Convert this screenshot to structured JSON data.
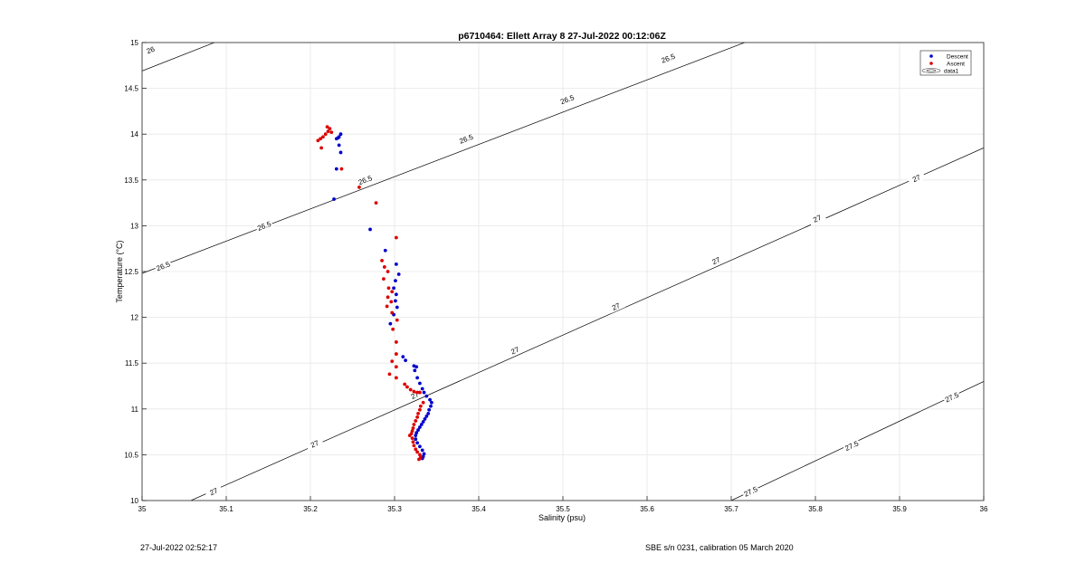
{
  "footer": {
    "timestamp": "27-Jul-2022 02:52:17",
    "calibration": "SBE s/n 0231, calibration 05 March 2020"
  },
  "colors": {
    "descent": "#0000cc",
    "ascent": "#dd0000",
    "contour": "#000000",
    "grid": "#e6e6e6"
  },
  "chart_data": {
    "type": "scatter",
    "title": "p6710464: Ellett Array 8 27-Jul-2022 00:12:06Z",
    "xlabel": "Salinity (psu)",
    "ylabel": "Temperature (°C)",
    "xlim": [
      35,
      36
    ],
    "ylim": [
      10,
      15
    ],
    "xticks": [
      "35",
      "35.1",
      "35.2",
      "35.3",
      "35.4",
      "35.5",
      "35.6",
      "35.7",
      "35.8",
      "35.9",
      "36"
    ],
    "yticks": [
      "10",
      "10.5",
      "11",
      "11.5",
      "12",
      "12.5",
      "13",
      "13.5",
      "14",
      "14.5",
      "15"
    ],
    "grid": true,
    "legend": {
      "placement": "top-right",
      "entries": [
        "Descent",
        "Ascent",
        "data1"
      ]
    },
    "series": [
      {
        "name": "Descent",
        "points": [
          [
            35.236,
            14.0
          ],
          [
            35.234,
            13.97
          ],
          [
            35.233,
            13.96
          ],
          [
            35.231,
            13.95
          ],
          [
            35.234,
            13.88
          ],
          [
            35.236,
            13.8
          ],
          [
            35.231,
            13.62
          ],
          [
            35.228,
            13.29
          ],
          [
            35.271,
            12.96
          ],
          [
            35.289,
            12.73
          ],
          [
            35.302,
            12.58
          ],
          [
            35.305,
            12.47
          ],
          [
            35.301,
            12.4
          ],
          [
            35.299,
            12.32
          ],
          [
            35.302,
            12.25
          ],
          [
            35.301,
            12.18
          ],
          [
            35.303,
            12.11
          ],
          [
            35.299,
            12.03
          ],
          [
            35.295,
            11.93
          ],
          [
            35.31,
            11.57
          ],
          [
            35.313,
            11.53
          ],
          [
            35.323,
            11.47
          ],
          [
            35.326,
            11.46
          ],
          [
            35.324,
            11.42
          ],
          [
            35.327,
            11.34
          ],
          [
            35.33,
            11.28
          ],
          [
            35.333,
            11.22
          ],
          [
            35.335,
            11.18
          ],
          [
            35.338,
            11.14
          ],
          [
            35.342,
            11.1
          ],
          [
            35.344,
            11.07
          ],
          [
            35.343,
            11.03
          ],
          [
            35.341,
            10.99
          ],
          [
            35.34,
            10.95
          ],
          [
            35.338,
            10.92
          ],
          [
            35.336,
            10.89
          ],
          [
            35.334,
            10.86
          ],
          [
            35.332,
            10.83
          ],
          [
            35.33,
            10.8
          ],
          [
            35.328,
            10.77
          ],
          [
            35.326,
            10.74
          ],
          [
            35.325,
            10.71
          ],
          [
            35.325,
            10.67
          ],
          [
            35.327,
            10.63
          ],
          [
            35.33,
            10.59
          ],
          [
            35.333,
            10.55
          ],
          [
            35.335,
            10.51
          ],
          [
            35.334,
            10.48
          ],
          [
            35.333,
            10.46
          ]
        ]
      },
      {
        "name": "Ascent",
        "points": [
          [
            35.22,
            14.08
          ],
          [
            35.223,
            14.06
          ],
          [
            35.221,
            14.03
          ],
          [
            35.225,
            14.02
          ],
          [
            35.218,
            14.0
          ],
          [
            35.215,
            13.97
          ],
          [
            35.212,
            13.95
          ],
          [
            35.209,
            13.93
          ],
          [
            35.213,
            13.85
          ],
          [
            35.237,
            13.62
          ],
          [
            35.258,
            13.42
          ],
          [
            35.278,
            13.25
          ],
          [
            35.302,
            12.87
          ],
          [
            35.285,
            12.62
          ],
          [
            35.288,
            12.55
          ],
          [
            35.292,
            12.5
          ],
          [
            35.287,
            12.42
          ],
          [
            35.293,
            12.32
          ],
          [
            35.297,
            12.28
          ],
          [
            35.292,
            12.22
          ],
          [
            35.296,
            12.17
          ],
          [
            35.291,
            12.12
          ],
          [
            35.297,
            12.05
          ],
          [
            35.303,
            11.97
          ],
          [
            35.298,
            11.87
          ],
          [
            35.302,
            11.73
          ],
          [
            35.302,
            11.6
          ],
          [
            35.297,
            11.52
          ],
          [
            35.302,
            11.46
          ],
          [
            35.294,
            11.38
          ],
          [
            35.302,
            11.34
          ],
          [
            35.312,
            11.27
          ],
          [
            35.315,
            11.24
          ],
          [
            35.319,
            11.21
          ],
          [
            35.323,
            11.19
          ],
          [
            35.327,
            11.18
          ],
          [
            35.33,
            11.18
          ],
          [
            35.334,
            11.07
          ],
          [
            35.331,
            11.03
          ],
          [
            35.33,
            10.99
          ],
          [
            35.328,
            10.95
          ],
          [
            35.327,
            10.91
          ],
          [
            35.325,
            10.87
          ],
          [
            35.323,
            10.83
          ],
          [
            35.322,
            10.79
          ],
          [
            35.321,
            10.76
          ],
          [
            35.32,
            10.73
          ],
          [
            35.318,
            10.71
          ],
          [
            35.321,
            10.68
          ],
          [
            35.322,
            10.64
          ],
          [
            35.323,
            10.6
          ],
          [
            35.325,
            10.56
          ],
          [
            35.327,
            10.53
          ],
          [
            35.33,
            10.5
          ],
          [
            35.331,
            10.47
          ],
          [
            35.329,
            10.45
          ]
        ]
      }
    ],
    "contours": [
      {
        "label": "26",
        "points": [
          [
            35.0,
            14.69
          ],
          [
            36.0,
            18.3
          ]
        ],
        "label_positions": [
          [
            35.01,
            14.92
          ]
        ]
      },
      {
        "label": "26.5",
        "points": [
          [
            35.0,
            12.48
          ],
          [
            36.0,
            16.0
          ]
        ],
        "label_positions": [
          [
            35.025,
            12.56
          ],
          [
            35.145,
            13.0
          ],
          [
            35.265,
            13.5
          ],
          [
            35.385,
            13.95
          ],
          [
            35.505,
            14.38
          ],
          [
            35.625,
            14.83
          ],
          [
            35.735,
            15.28
          ]
        ]
      },
      {
        "label": "27",
        "points": [
          [
            35.058,
            10.0
          ],
          [
            36.0,
            13.85
          ]
        ],
        "label_positions": [
          [
            35.085,
            10.1
          ],
          [
            35.205,
            10.62
          ],
          [
            35.324,
            11.15
          ],
          [
            35.443,
            11.64
          ],
          [
            35.563,
            12.12
          ],
          [
            35.682,
            12.62
          ],
          [
            35.802,
            13.08
          ],
          [
            35.92,
            13.52
          ]
        ]
      },
      {
        "label": "27.5",
        "points": [
          [
            35.7,
            10.0
          ],
          [
            36.0,
            11.3
          ]
        ],
        "label_positions": [
          [
            35.723,
            10.1
          ],
          [
            35.843,
            10.6
          ],
          [
            35.962,
            11.13
          ]
        ]
      }
    ]
  }
}
